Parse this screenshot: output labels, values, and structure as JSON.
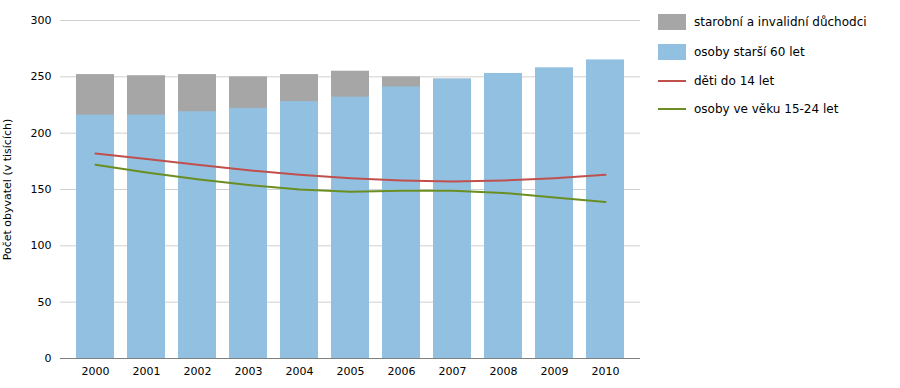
{
  "chart_data": {
    "type": "bar",
    "categories": [
      "2000",
      "2001",
      "2002",
      "2003",
      "2004",
      "2005",
      "2006",
      "2007",
      "2008",
      "2009",
      "2010"
    ],
    "series": [
      {
        "name": "starobní a invalidní důchodci",
        "type": "bar",
        "color": "#a6a6a6",
        "values": [
          252,
          251,
          252,
          250,
          252,
          255,
          250,
          248,
          240,
          247,
          250
        ]
      },
      {
        "name": "osoby starší 60 let",
        "type": "bar",
        "color": "#92c0e0",
        "values": [
          216,
          216,
          219,
          222,
          228,
          232,
          241,
          248,
          253,
          258,
          265
        ]
      },
      {
        "name": "děti do 14 let",
        "type": "line",
        "color": "#c0504d",
        "values": [
          182,
          177,
          172,
          167,
          163,
          160,
          158,
          157,
          158,
          160,
          163
        ]
      },
      {
        "name": "osoby ve věku 15-24 let",
        "type": "line",
        "color": "#6b8e23",
        "values": [
          172,
          165,
          159,
          154,
          150,
          148,
          149,
          149,
          147,
          143,
          139
        ]
      }
    ],
    "ylabel": "Počet obyvatel (v tisících)",
    "ylim": [
      0,
      300
    ],
    "yticks": [
      0,
      50,
      100,
      150,
      200,
      250,
      300
    ],
    "grid": true,
    "legend": "right"
  }
}
